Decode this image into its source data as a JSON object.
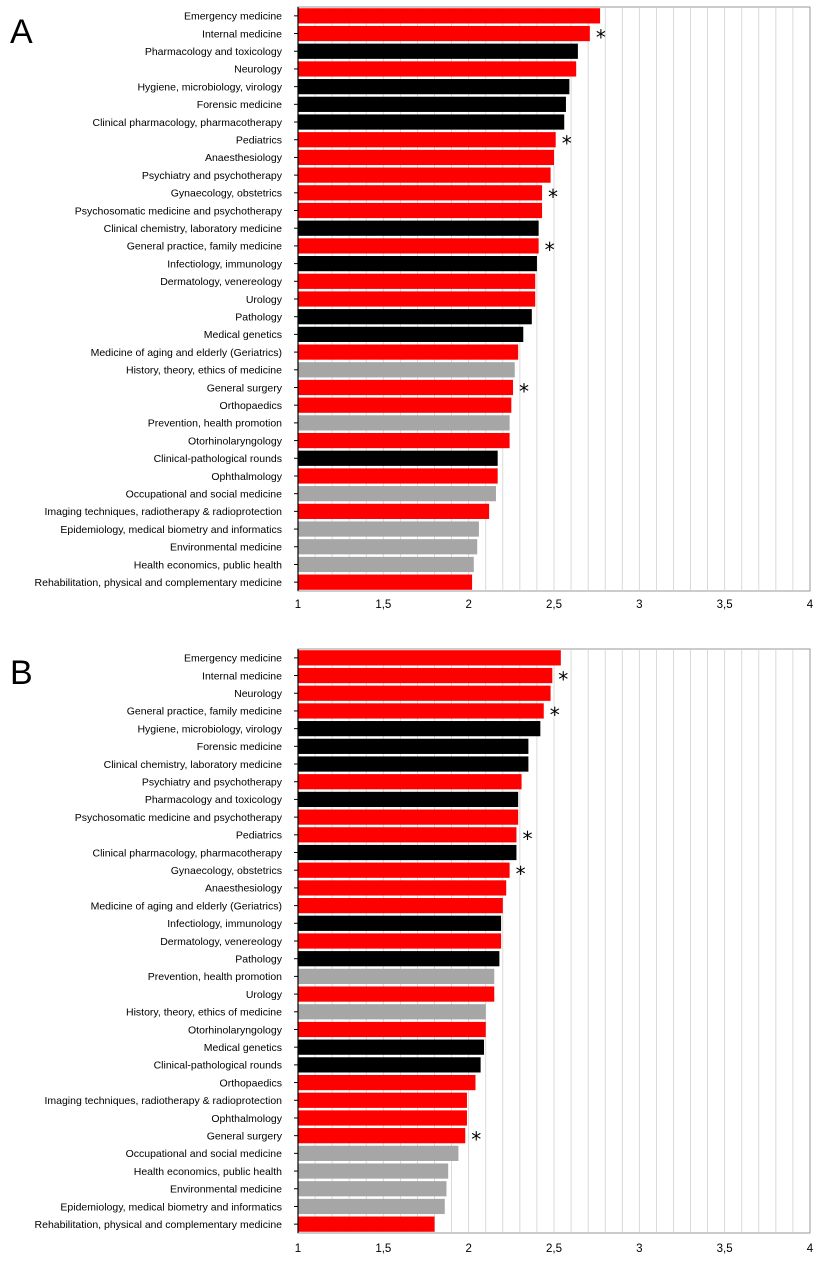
{
  "colors": {
    "clinical": "#ff0000",
    "preclinical": "#000000",
    "other": "#a6a6a6"
  },
  "chart_data": [
    {
      "type": "bar",
      "orientation": "horizontal",
      "panel": "A",
      "xlim": [
        1,
        4
      ],
      "xticks": [
        "1",
        "1,5",
        "2",
        "2,5",
        "3",
        "3,5",
        "4"
      ],
      "grid": true,
      "categories": [
        "Emergency medicine",
        "Internal medicine",
        "Pharmacology and toxicology",
        "Neurology",
        "Hygiene, microbiology, virology",
        "Forensic medicine",
        "Clinical pharmacology, pharmacotherapy",
        "Pediatrics",
        "Anaesthesiology",
        "Psychiatry and psychotherapy",
        "Gynaecology, obstetrics",
        "Psychosomatic medicine and psychotherapy",
        "Clinical chemistry, laboratory medicine",
        "General practice, family medicine",
        "Infectiology, immunology",
        "Dermatology, venereology",
        "Urology",
        "Pathology",
        "Medical genetics",
        "Medicine of aging and elderly (Geriatrics)",
        "History, theory, ethics of medicine",
        "General surgery",
        "Orthopaedics",
        "Prevention, health promotion",
        "Otorhinolaryngology",
        "Clinical-pathological rounds",
        "Ophthalmology",
        "Occupational and social medicine",
        "Imaging techniques, radiotherapy & radioprotection",
        "Epidemiology, medical biometry and informatics",
        "Environmental medicine",
        "Health economics, public health",
        "Rehabilitation, physical and complementary medicine"
      ],
      "values": [
        2.77,
        2.71,
        2.64,
        2.63,
        2.59,
        2.57,
        2.56,
        2.51,
        2.5,
        2.48,
        2.43,
        2.43,
        2.41,
        2.41,
        2.4,
        2.39,
        2.39,
        2.37,
        2.32,
        2.29,
        2.27,
        2.26,
        2.25,
        2.24,
        2.24,
        2.17,
        2.17,
        2.16,
        2.12,
        2.06,
        2.05,
        2.03,
        2.02
      ],
      "groups": [
        "clinical",
        "clinical",
        "preclinical",
        "clinical",
        "preclinical",
        "preclinical",
        "preclinical",
        "clinical",
        "clinical",
        "clinical",
        "clinical",
        "clinical",
        "preclinical",
        "clinical",
        "preclinical",
        "clinical",
        "clinical",
        "preclinical",
        "preclinical",
        "clinical",
        "other",
        "clinical",
        "clinical",
        "other",
        "clinical",
        "preclinical",
        "clinical",
        "other",
        "clinical",
        "other",
        "other",
        "other",
        "clinical"
      ],
      "starred": [
        false,
        true,
        false,
        false,
        false,
        false,
        false,
        true,
        false,
        false,
        true,
        false,
        false,
        true,
        false,
        false,
        false,
        false,
        false,
        false,
        false,
        true,
        false,
        false,
        false,
        false,
        false,
        false,
        false,
        false,
        false,
        false,
        false
      ],
      "star_symbol": "*"
    },
    {
      "type": "bar",
      "orientation": "horizontal",
      "panel": "B",
      "xlim": [
        1,
        4
      ],
      "xticks": [
        "1",
        "1,5",
        "2",
        "2,5",
        "3",
        "3,5",
        "4"
      ],
      "grid": true,
      "categories": [
        "Emergency medicine",
        "Internal medicine",
        "Neurology",
        "General practice, family medicine",
        "Hygiene, microbiology, virology",
        "Forensic medicine",
        "Clinical chemistry, laboratory medicine",
        "Psychiatry and psychotherapy",
        "Pharmacology and toxicology",
        "Psychosomatic medicine and psychotherapy",
        "Pediatrics",
        "Clinical pharmacology, pharmacotherapy",
        "Gynaecology, obstetrics",
        "Anaesthesiology",
        "Medicine of aging and elderly (Geriatrics)",
        "Infectiology, immunology",
        "Dermatology, venereology",
        "Pathology",
        "Prevention, health promotion",
        "Urology",
        "History, theory, ethics of medicine",
        "Otorhinolaryngology",
        "Medical genetics",
        "Clinical-pathological rounds",
        "Orthopaedics",
        "Imaging techniques, radiotherapy & radioprotection",
        "Ophthalmology",
        "General surgery",
        "Occupational and social medicine",
        "Health economics, public health",
        "Environmental medicine",
        "Epidemiology, medical biometry and informatics",
        "Rehabilitation, physical and complementary medicine"
      ],
      "values": [
        2.54,
        2.49,
        2.48,
        2.44,
        2.42,
        2.35,
        2.35,
        2.31,
        2.29,
        2.29,
        2.28,
        2.28,
        2.24,
        2.22,
        2.2,
        2.19,
        2.19,
        2.18,
        2.15,
        2.15,
        2.1,
        2.1,
        2.09,
        2.07,
        2.04,
        1.99,
        1.99,
        1.98,
        1.94,
        1.88,
        1.87,
        1.86,
        1.8
      ],
      "groups": [
        "clinical",
        "clinical",
        "clinical",
        "clinical",
        "preclinical",
        "preclinical",
        "preclinical",
        "clinical",
        "preclinical",
        "clinical",
        "clinical",
        "preclinical",
        "clinical",
        "clinical",
        "clinical",
        "preclinical",
        "clinical",
        "preclinical",
        "other",
        "clinical",
        "other",
        "clinical",
        "preclinical",
        "preclinical",
        "clinical",
        "clinical",
        "clinical",
        "clinical",
        "other",
        "other",
        "other",
        "other",
        "clinical"
      ],
      "starred": [
        false,
        true,
        false,
        true,
        false,
        false,
        false,
        false,
        false,
        false,
        true,
        false,
        true,
        false,
        false,
        false,
        false,
        false,
        false,
        false,
        false,
        false,
        false,
        false,
        false,
        false,
        false,
        true,
        false,
        false,
        false,
        false,
        false
      ],
      "star_symbol": "*"
    }
  ]
}
